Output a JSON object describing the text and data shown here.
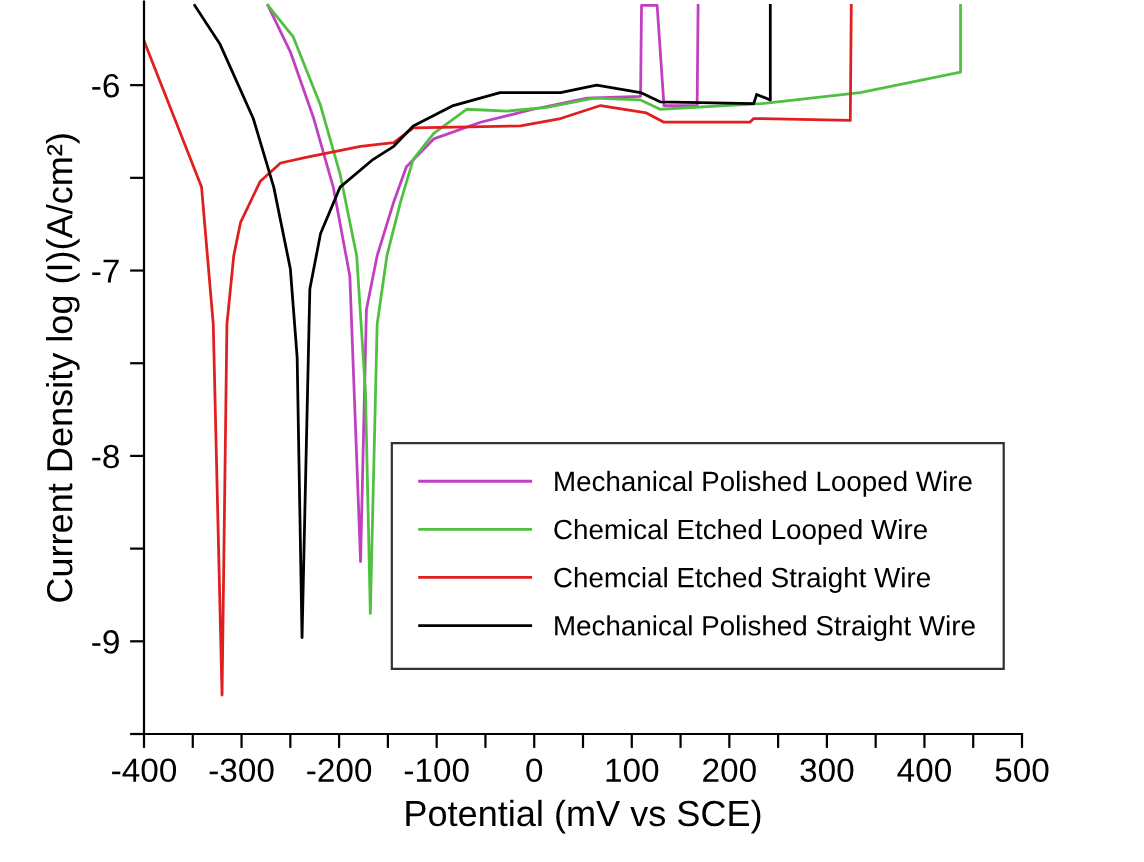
{
  "chart_data": {
    "type": "line",
    "xlabel": "Potential (mV vs SCE)",
    "ylabel": "Current Density log (I)(A/cm²)",
    "xlim": [
      -400,
      500
    ],
    "ylim": [
      -9.5,
      -5.55
    ],
    "xticks": [
      -400,
      {
        "value": -350,
        "label": null
      },
      -300,
      {
        "value": -250,
        "label": null
      },
      -200,
      {
        "value": -150,
        "label": null
      },
      -100,
      {
        "value": -50,
        "label": null
      },
      0,
      {
        "value": 50,
        "label": null
      },
      100,
      {
        "value": 150,
        "label": null
      },
      200,
      {
        "value": 250,
        "label": null
      },
      300,
      {
        "value": 350,
        "label": null
      },
      400,
      {
        "value": 450,
        "label": null
      },
      500
    ],
    "yticks": [
      {
        "value": -9.5,
        "label": null
      },
      -9,
      {
        "value": -8.5,
        "label": null
      },
      -8,
      {
        "value": -7.5,
        "label": null
      },
      -7,
      {
        "value": -6.5,
        "label": null
      },
      -6
    ],
    "grid": false,
    "legend": "bottom right",
    "marker": "none",
    "line_style": "solid",
    "series": [
      {
        "name": "Mechanical Polished Looped Wire",
        "color": "#c040c0",
        "x": [
          -273,
          -250,
          -226,
          -206,
          -189,
          -178,
          -172,
          -161,
          -144,
          -131,
          -103,
          -55,
          -1,
          54,
          109,
          110,
          126,
          133,
          167,
          168
        ],
        "values": [
          -5.57,
          -5.82,
          -6.18,
          -6.55,
          -7.03,
          -8.57,
          -7.21,
          -6.92,
          -6.63,
          -6.44,
          -6.29,
          -6.2,
          -6.13,
          -6.07,
          -6.06,
          -5.57,
          -5.57,
          -6.11,
          -6.11,
          -5.57
        ]
      },
      {
        "name": "Chemical Etched Looped Wire",
        "color": "#50c040",
        "x": [
          -273,
          -247,
          -219,
          -199,
          -182,
          -173,
          -168,
          -161,
          -151,
          -137,
          -124,
          -103,
          -69,
          -28,
          13,
          61,
          109,
          129,
          232,
          334,
          437,
          437
        ],
        "values": [
          -5.57,
          -5.74,
          -6.11,
          -6.48,
          -6.92,
          -7.65,
          -8.85,
          -7.29,
          -6.92,
          -6.63,
          -6.4,
          -6.26,
          -6.13,
          -6.14,
          -6.12,
          -6.07,
          -6.08,
          -6.13,
          -6.1,
          -6.04,
          -5.93,
          -5.57
        ]
      },
      {
        "name": "Chemcial Etched Straight Wire",
        "color": "#e02020",
        "x": [
          -400,
          -341,
          -329,
          -320,
          -315,
          -308,
          -301,
          -281,
          -260,
          -234,
          -178,
          -144,
          -124,
          -14,
          27,
          68,
          115,
          133,
          221,
          225,
          324,
          325
        ],
        "values": [
          -5.76,
          -6.55,
          -7.29,
          -9.29,
          -7.29,
          -6.92,
          -6.74,
          -6.52,
          -6.42,
          -6.39,
          -6.33,
          -6.31,
          -6.23,
          -6.22,
          -6.18,
          -6.11,
          -6.15,
          -6.2,
          -6.2,
          -6.18,
          -6.19,
          -5.57
        ]
      },
      {
        "name": "Mechanical Polished Straight Wire",
        "color": "#000000",
        "x": [
          -348,
          -322,
          -288,
          -267,
          -250,
          -243,
          -238,
          -230,
          -219,
          -199,
          -165,
          -144,
          -124,
          -83,
          -35,
          27,
          64,
          109,
          129,
          225,
          228,
          242,
          242
        ],
        "values": [
          -5.57,
          -5.78,
          -6.18,
          -6.55,
          -6.99,
          -7.47,
          -8.98,
          -7.1,
          -6.8,
          -6.55,
          -6.4,
          -6.33,
          -6.22,
          -6.11,
          -6.04,
          -6.04,
          -6.0,
          -6.04,
          -6.09,
          -6.1,
          -6.05,
          -6.08,
          -5.57
        ]
      }
    ]
  }
}
